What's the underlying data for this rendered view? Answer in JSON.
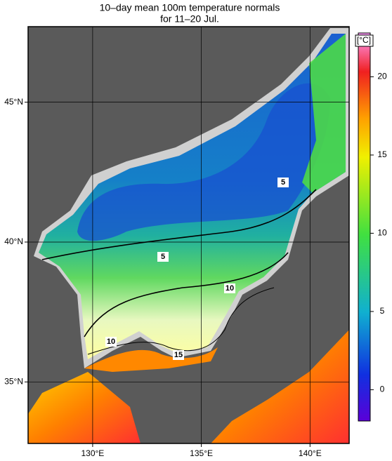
{
  "title": [
    "10–day mean 100m temperature normals",
    "for 11–20 Jul."
  ],
  "map": {
    "lonlim": [
      127.03,
      141.8
    ],
    "latlim": [
      32.8,
      47.7
    ],
    "lon_ticks": [
      {
        "value": 130,
        "label": "130°E"
      },
      {
        "value": 135,
        "label": "135°E"
      },
      {
        "value": 140,
        "label": "140°E"
      }
    ],
    "lat_ticks": [
      {
        "value": 35,
        "label": "35°N"
      },
      {
        "value": 40,
        "label": "40°N"
      },
      {
        "value": 45,
        "label": "45°N"
      }
    ]
  },
  "colorbar": {
    "unit": "[°C]",
    "lim": [
      -2,
      22.8
    ],
    "ticks": [
      0,
      5,
      10,
      15,
      20
    ]
  },
  "contour_labels": [
    5,
    5,
    10,
    10,
    15
  ]
}
